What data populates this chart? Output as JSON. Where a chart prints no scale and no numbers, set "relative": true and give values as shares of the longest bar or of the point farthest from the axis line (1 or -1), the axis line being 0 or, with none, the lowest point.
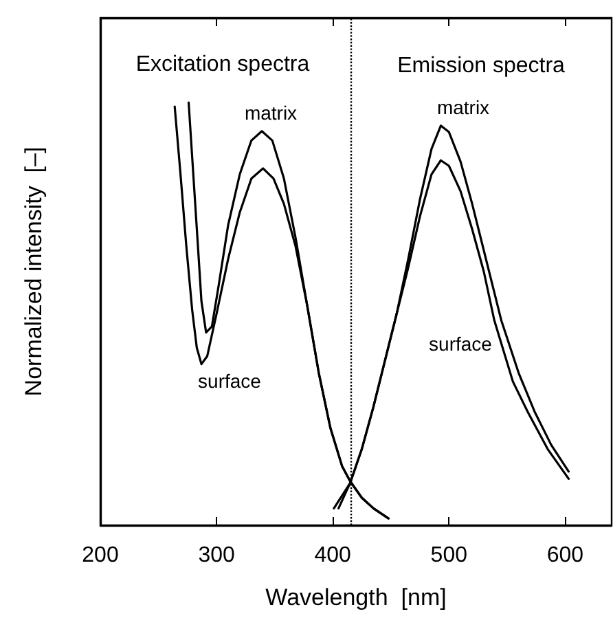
{
  "chart_data": {
    "type": "line",
    "relative": true,
    "xlabel": "Wavelength  [nm]",
    "ylabel": "Normalized intensity  [–]",
    "xlim": [
      200,
      640
    ],
    "xticks": [
      200,
      300,
      400,
      500,
      600
    ],
    "series": [
      {
        "color": "#000000",
        "x": [
          276,
          280,
          284,
          287,
          291,
          296,
          302,
          310,
          320,
          330,
          339,
          348,
          358,
          368,
          378,
          388,
          398,
          408,
          415,
          425,
          435,
          448
        ],
        "values": [
          1.0,
          0.83,
          0.66,
          0.53,
          0.456,
          0.47,
          0.57,
          0.71,
          0.83,
          0.91,
          0.932,
          0.91,
          0.82,
          0.68,
          0.52,
          0.36,
          0.23,
          0.14,
          0.104,
          0.065,
          0.04,
          0.016
        ]
      },
      {
        "color": "#000000",
        "x": [
          264,
          269,
          274,
          279,
          283,
          287,
          292,
          300,
          310,
          320,
          330,
          340,
          349,
          358,
          368,
          378,
          388,
          398,
          408,
          415,
          425,
          435,
          448
        ],
        "values": [
          0.99,
          0.83,
          0.66,
          0.51,
          0.42,
          0.381,
          0.4,
          0.5,
          0.63,
          0.74,
          0.82,
          0.844,
          0.82,
          0.76,
          0.66,
          0.52,
          0.36,
          0.23,
          0.14,
          0.104,
          0.065,
          0.04,
          0.016
        ]
      },
      {
        "color": "#000000",
        "x": [
          405,
          415,
          425,
          435,
          445,
          455,
          465,
          475,
          485,
          493,
          500,
          510,
          520,
          530,
          545,
          560,
          574,
          588,
          603
        ],
        "values": [
          0.04,
          0.1,
          0.18,
          0.28,
          0.39,
          0.5,
          0.63,
          0.77,
          0.89,
          0.945,
          0.93,
          0.86,
          0.76,
          0.65,
          0.485,
          0.36,
          0.267,
          0.19,
          0.127
        ]
      },
      {
        "color": "#000000",
        "x": [
          401,
          415,
          425,
          435,
          445,
          455,
          465,
          475,
          485,
          493,
          500,
          510,
          520,
          530,
          539,
          555,
          568,
          585,
          603
        ],
        "values": [
          0.04,
          0.1,
          0.18,
          0.28,
          0.39,
          0.5,
          0.61,
          0.73,
          0.83,
          0.863,
          0.85,
          0.79,
          0.7,
          0.6,
          0.485,
          0.34,
          0.267,
          0.18,
          0.11
        ]
      }
    ],
    "annotations": [
      "Excitation spectra",
      "Emission spectra",
      "matrix",
      "surface",
      "matrix",
      "surface"
    ],
    "ref_lines": [
      {
        "axis": "x",
        "value": 415,
        "line_style": "dotted",
        "color": "#000000"
      }
    ],
    "line_style": "solid",
    "marker": "none",
    "grid": false
  }
}
